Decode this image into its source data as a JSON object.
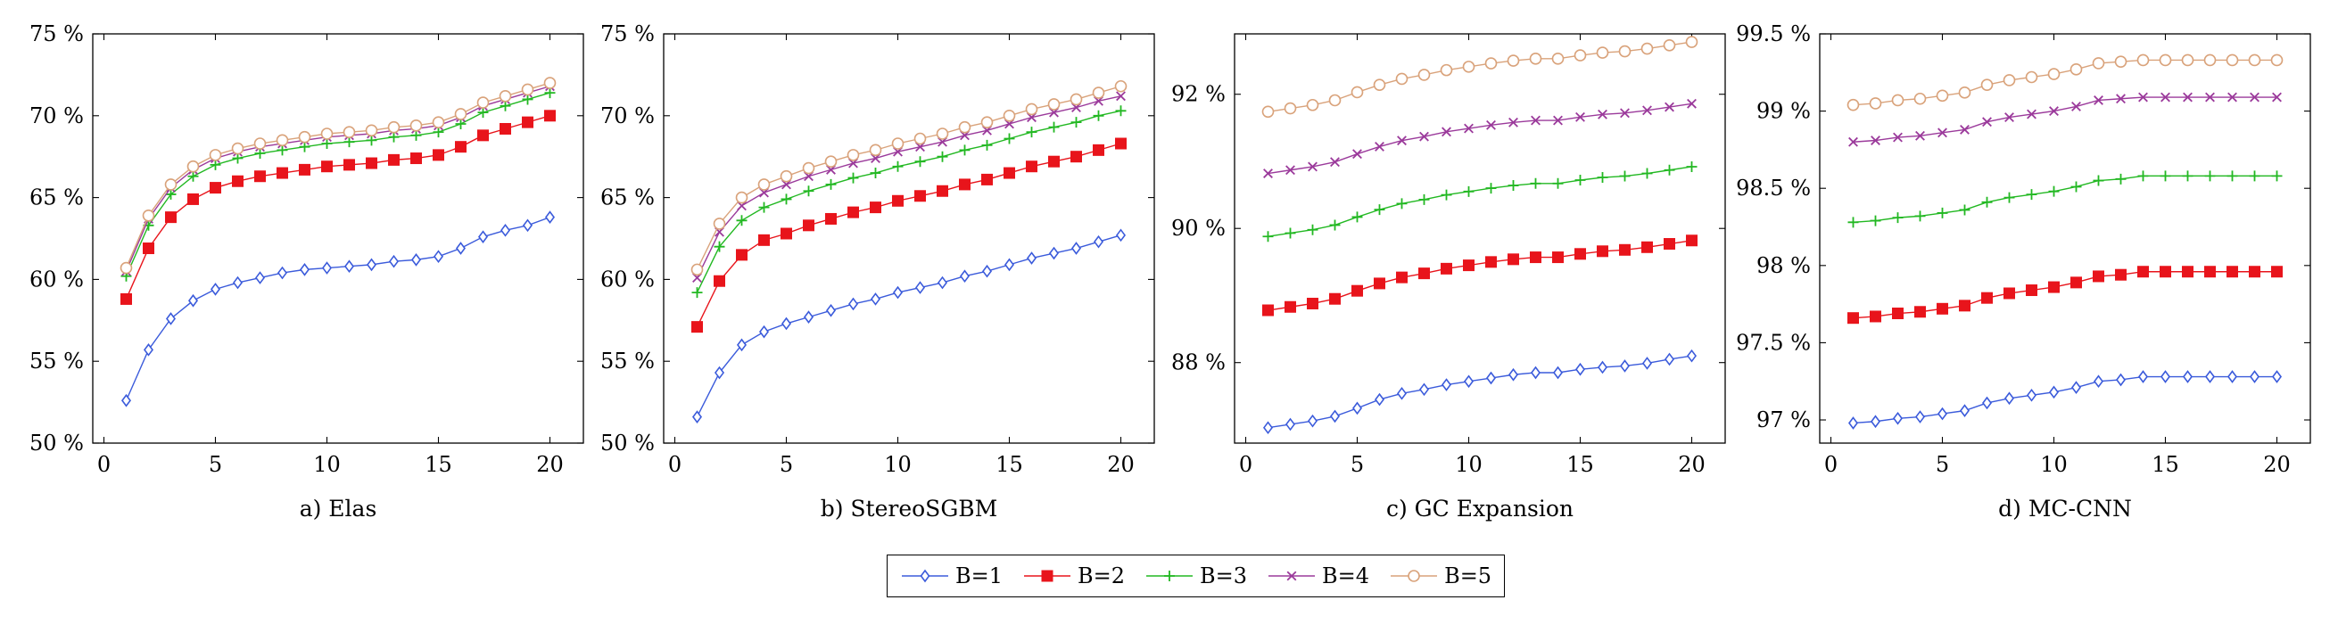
{
  "series_styles": [
    {
      "name": "B=1",
      "color": "#3b5bdb",
      "marker": "diamond"
    },
    {
      "name": "B=2",
      "color": "#e8141b",
      "marker": "square"
    },
    {
      "name": "B=3",
      "color": "#22b822",
      "marker": "plus"
    },
    {
      "name": "B=4",
      "color": "#9b3a9b",
      "marker": "cross"
    },
    {
      "name": "B=5",
      "color": "#d9a27a",
      "marker": "circle"
    }
  ],
  "chart_data": [
    {
      "type": "line",
      "caption": "a) Elas",
      "x": [
        1,
        2,
        3,
        4,
        5,
        6,
        7,
        8,
        9,
        10,
        11,
        12,
        13,
        14,
        15,
        16,
        17,
        18,
        19,
        20
      ],
      "xlim": [
        -0.5,
        21.5
      ],
      "xticks": [
        0,
        5,
        10,
        15,
        20
      ],
      "ylim": [
        50,
        75
      ],
      "yticks": [
        50,
        55,
        60,
        65,
        70,
        75
      ],
      "ytick_labels": [
        "50 %",
        "55 %",
        "60 %",
        "65 %",
        "70 %",
        "75 %"
      ],
      "series": [
        {
          "name": "B=1",
          "values": [
            52.6,
            55.7,
            57.6,
            58.7,
            59.4,
            59.8,
            60.1,
            60.4,
            60.6,
            60.7,
            60.8,
            60.9,
            61.1,
            61.2,
            61.4,
            61.9,
            62.6,
            63.0,
            63.3,
            63.8
          ]
        },
        {
          "name": "B=2",
          "values": [
            58.8,
            61.9,
            63.8,
            64.9,
            65.6,
            66.0,
            66.3,
            66.5,
            66.7,
            66.9,
            67.0,
            67.1,
            67.3,
            67.4,
            67.6,
            68.1,
            68.8,
            69.2,
            69.6,
            70.0
          ]
        },
        {
          "name": "B=3",
          "values": [
            60.2,
            63.3,
            65.2,
            66.3,
            67.0,
            67.4,
            67.7,
            67.9,
            68.1,
            68.3,
            68.4,
            68.5,
            68.7,
            68.8,
            69.0,
            69.5,
            70.2,
            70.6,
            71.0,
            71.4
          ]
        },
        {
          "name": "B=4",
          "values": [
            60.5,
            63.7,
            65.6,
            66.7,
            67.4,
            67.8,
            68.1,
            68.3,
            68.5,
            68.7,
            68.8,
            68.9,
            69.1,
            69.2,
            69.4,
            69.9,
            70.6,
            71.0,
            71.4,
            71.8
          ]
        },
        {
          "name": "B=5",
          "values": [
            60.7,
            63.9,
            65.8,
            66.9,
            67.6,
            68.0,
            68.3,
            68.5,
            68.7,
            68.9,
            69.0,
            69.1,
            69.3,
            69.4,
            69.6,
            70.1,
            70.8,
            71.2,
            71.6,
            72.0
          ]
        }
      ]
    },
    {
      "type": "line",
      "caption": "b) StereoSGBM",
      "x": [
        1,
        2,
        3,
        4,
        5,
        6,
        7,
        8,
        9,
        10,
        11,
        12,
        13,
        14,
        15,
        16,
        17,
        18,
        19,
        20
      ],
      "xlim": [
        -0.5,
        21.5
      ],
      "xticks": [
        0,
        5,
        10,
        15,
        20
      ],
      "ylim": [
        50,
        75
      ],
      "yticks": [
        50,
        55,
        60,
        65,
        70,
        75
      ],
      "ytick_labels": [
        "50 %",
        "55 %",
        "60 %",
        "65 %",
        "70 %",
        "75 %"
      ],
      "series": [
        {
          "name": "B=1",
          "values": [
            51.6,
            54.3,
            56.0,
            56.8,
            57.3,
            57.7,
            58.1,
            58.5,
            58.8,
            59.2,
            59.5,
            59.8,
            60.2,
            60.5,
            60.9,
            61.3,
            61.6,
            61.9,
            62.3,
            62.7
          ]
        },
        {
          "name": "B=2",
          "values": [
            57.1,
            59.9,
            61.5,
            62.4,
            62.8,
            63.3,
            63.7,
            64.1,
            64.4,
            64.8,
            65.1,
            65.4,
            65.8,
            66.1,
            66.5,
            66.9,
            67.2,
            67.5,
            67.9,
            68.3
          ]
        },
        {
          "name": "B=3",
          "values": [
            59.2,
            62.0,
            63.6,
            64.4,
            64.9,
            65.4,
            65.8,
            66.2,
            66.5,
            66.9,
            67.2,
            67.5,
            67.9,
            68.2,
            68.6,
            69.0,
            69.3,
            69.6,
            70.0,
            70.3
          ]
        },
        {
          "name": "B=4",
          "values": [
            60.1,
            62.9,
            64.5,
            65.3,
            65.8,
            66.3,
            66.7,
            67.1,
            67.4,
            67.8,
            68.1,
            68.4,
            68.8,
            69.1,
            69.5,
            69.9,
            70.2,
            70.5,
            70.9,
            71.2
          ]
        },
        {
          "name": "B=5",
          "values": [
            60.6,
            63.4,
            65.0,
            65.8,
            66.3,
            66.8,
            67.2,
            67.6,
            67.9,
            68.3,
            68.6,
            68.9,
            69.3,
            69.6,
            70.0,
            70.4,
            70.7,
            71.0,
            71.4,
            71.8
          ]
        }
      ]
    },
    {
      "type": "line",
      "caption": "c) GC Expansion",
      "x": [
        1,
        2,
        3,
        4,
        5,
        6,
        7,
        8,
        9,
        10,
        11,
        12,
        13,
        14,
        15,
        16,
        17,
        18,
        19,
        20
      ],
      "xlim": [
        -0.5,
        21.5
      ],
      "xticks": [
        0,
        5,
        10,
        15,
        20
      ],
      "ylim": [
        86.8,
        92.9
      ],
      "yticks": [
        88,
        90,
        92
      ],
      "ytick_labels": [
        "88 %",
        "90 %",
        "92 %"
      ],
      "series": [
        {
          "name": "B=1",
          "values": [
            87.03,
            87.08,
            87.13,
            87.2,
            87.32,
            87.45,
            87.54,
            87.6,
            87.67,
            87.72,
            87.77,
            87.82,
            87.85,
            87.85,
            87.9,
            87.93,
            87.95,
            87.99,
            88.05,
            88.1
          ]
        },
        {
          "name": "B=2",
          "values": [
            88.78,
            88.83,
            88.88,
            88.95,
            89.07,
            89.18,
            89.27,
            89.33,
            89.4,
            89.45,
            89.5,
            89.54,
            89.57,
            89.57,
            89.62,
            89.66,
            89.68,
            89.72,
            89.77,
            89.82
          ]
        },
        {
          "name": "B=3",
          "values": [
            89.88,
            89.93,
            89.98,
            90.05,
            90.17,
            90.28,
            90.37,
            90.43,
            90.5,
            90.55,
            90.6,
            90.64,
            90.67,
            90.67,
            90.72,
            90.76,
            90.78,
            90.82,
            90.87,
            90.92
          ]
        },
        {
          "name": "B=4",
          "values": [
            90.82,
            90.87,
            90.92,
            90.99,
            91.11,
            91.22,
            91.31,
            91.37,
            91.44,
            91.49,
            91.54,
            91.58,
            91.61,
            91.61,
            91.66,
            91.7,
            91.72,
            91.76,
            91.81,
            91.86
          ]
        },
        {
          "name": "B=5",
          "values": [
            91.74,
            91.79,
            91.84,
            91.91,
            92.03,
            92.14,
            92.23,
            92.29,
            92.36,
            92.41,
            92.46,
            92.5,
            92.53,
            92.53,
            92.58,
            92.62,
            92.64,
            92.68,
            92.73,
            92.78
          ]
        }
      ]
    },
    {
      "type": "line",
      "caption": "d) MC-CNN",
      "x": [
        1,
        2,
        3,
        4,
        5,
        6,
        7,
        8,
        9,
        10,
        11,
        12,
        13,
        14,
        15,
        16,
        17,
        18,
        19,
        20
      ],
      "xlim": [
        -0.5,
        21.5
      ],
      "xticks": [
        0,
        5,
        10,
        15,
        20
      ],
      "ylim": [
        96.85,
        99.5
      ],
      "yticks": [
        97,
        97.5,
        98,
        98.5,
        99,
        99.5
      ],
      "ytick_labels": [
        "97 %",
        "97.5 %",
        "98 %",
        "98.5 %",
        "99 %",
        "99.5 %"
      ],
      "series": [
        {
          "name": "B=1",
          "values": [
            96.98,
            96.99,
            97.01,
            97.02,
            97.04,
            97.06,
            97.11,
            97.14,
            97.16,
            97.18,
            97.21,
            97.25,
            97.26,
            97.28,
            97.28,
            97.28,
            97.28,
            97.28,
            97.28,
            97.28
          ]
        },
        {
          "name": "B=2",
          "values": [
            97.66,
            97.67,
            97.69,
            97.7,
            97.72,
            97.74,
            97.79,
            97.82,
            97.84,
            97.86,
            97.89,
            97.93,
            97.94,
            97.96,
            97.96,
            97.96,
            97.96,
            97.96,
            97.96,
            97.96
          ]
        },
        {
          "name": "B=3",
          "values": [
            98.28,
            98.29,
            98.31,
            98.32,
            98.34,
            98.36,
            98.41,
            98.44,
            98.46,
            98.48,
            98.51,
            98.55,
            98.56,
            98.58,
            98.58,
            98.58,
            98.58,
            98.58,
            98.58,
            98.58
          ]
        },
        {
          "name": "B=4",
          "values": [
            98.8,
            98.81,
            98.83,
            98.84,
            98.86,
            98.88,
            98.93,
            98.96,
            98.98,
            99.0,
            99.03,
            99.07,
            99.08,
            99.09,
            99.09,
            99.09,
            99.09,
            99.09,
            99.09,
            99.09
          ]
        },
        {
          "name": "B=5",
          "values": [
            99.04,
            99.05,
            99.07,
            99.08,
            99.1,
            99.12,
            99.17,
            99.2,
            99.22,
            99.24,
            99.27,
            99.31,
            99.32,
            99.33,
            99.33,
            99.33,
            99.33,
            99.33,
            99.33,
            99.33
          ]
        }
      ]
    }
  ]
}
